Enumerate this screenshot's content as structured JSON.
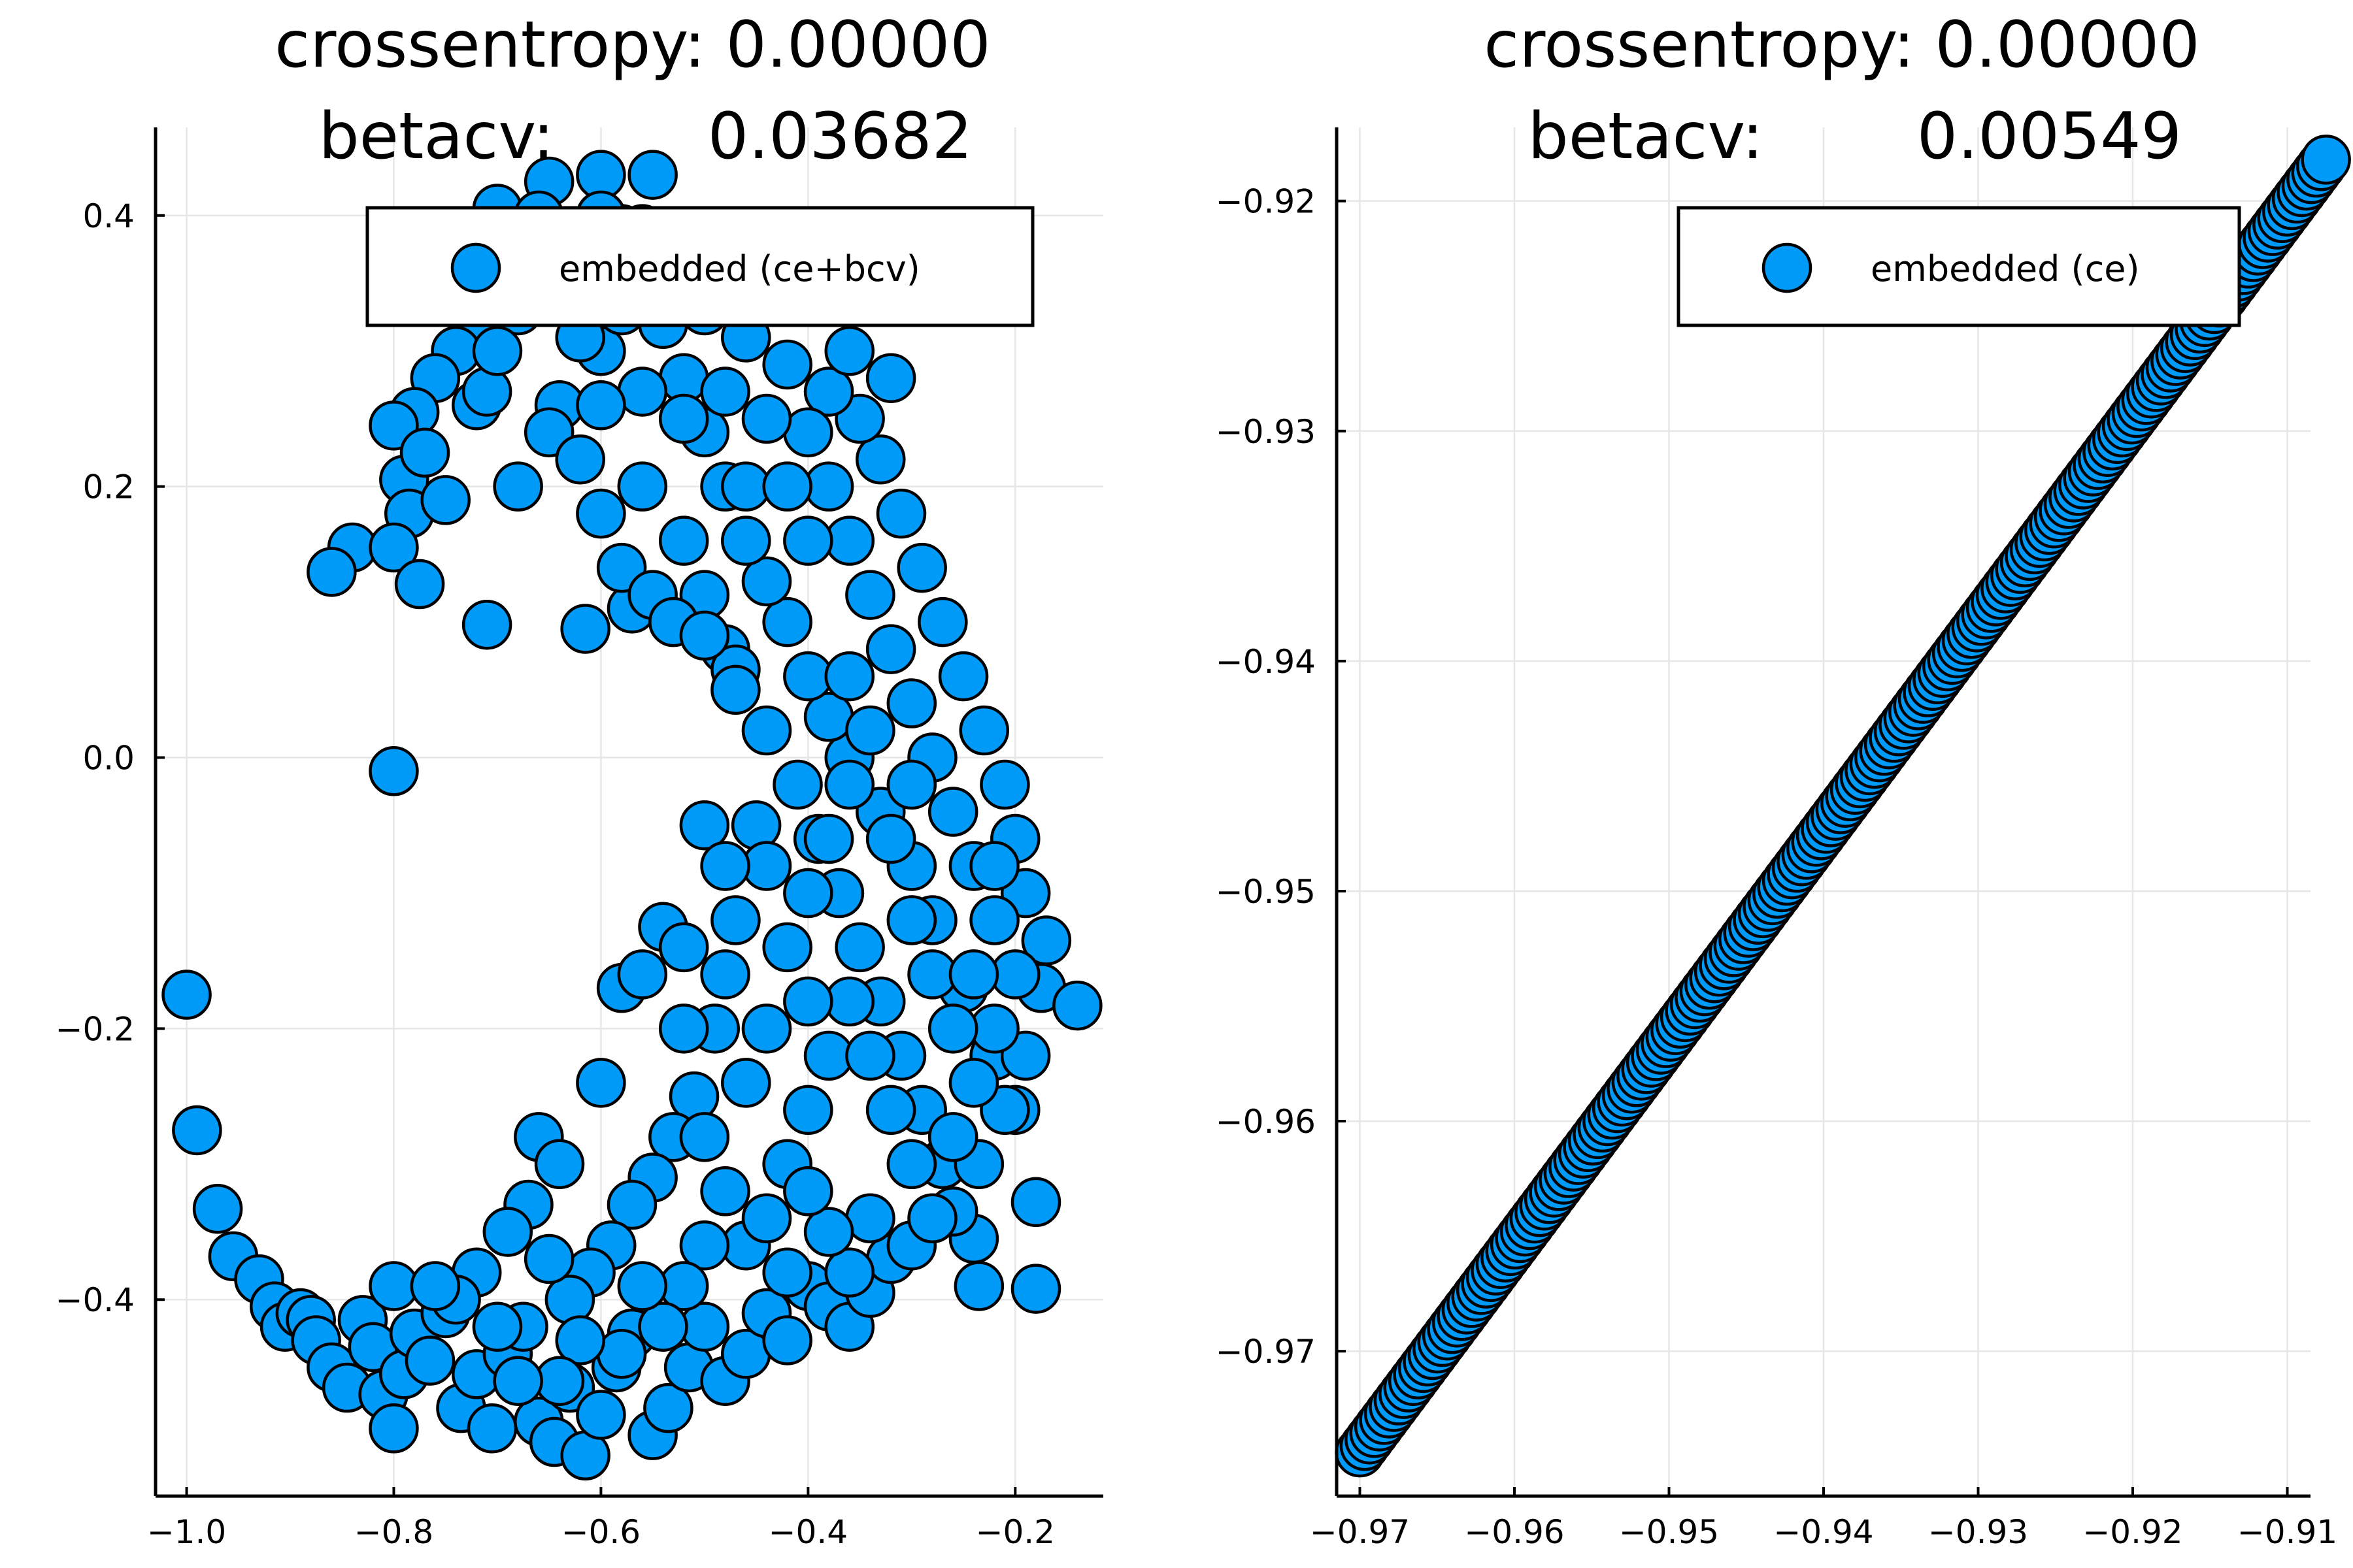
{
  "chart_data": [
    {
      "type": "scatter",
      "title_line1": "crossentropy: 0.00000",
      "title_line2_label": "betacv:",
      "title_line2_value": "0.03682",
      "legend": "embedded (ce+bcv)",
      "legend_position": "top-right",
      "grid": true,
      "marker_color": "#009af9",
      "xlim": [
        -1.03,
        -0.115
      ],
      "ylim": [
        -0.545,
        0.465
      ],
      "xticks": [
        -1.0,
        -0.8,
        -0.6,
        -0.4,
        -0.2
      ],
      "xtick_labels": [
        "−1.0",
        "−0.8",
        "−0.6",
        "−0.4",
        "−0.2"
      ],
      "yticks": [
        -0.4,
        -0.2,
        0.0,
        0.2,
        0.4
      ],
      "ytick_labels": [
        "−0.4",
        "−0.2",
        "0.0",
        "0.2",
        "0.4"
      ],
      "points": [
        [
          -1.0,
          -0.175
        ],
        [
          -0.99,
          -0.275
        ],
        [
          -0.97,
          -0.333
        ],
        [
          -0.955,
          -0.368
        ],
        [
          -0.93,
          -0.385
        ],
        [
          -0.915,
          -0.405
        ],
        [
          -0.905,
          -0.42
        ],
        [
          -0.89,
          -0.41
        ],
        [
          -0.88,
          -0.415
        ],
        [
          -0.875,
          -0.43
        ],
        [
          -0.86,
          -0.45
        ],
        [
          -0.845,
          -0.465
        ],
        [
          -0.83,
          -0.415
        ],
        [
          -0.82,
          -0.435
        ],
        [
          -0.81,
          -0.47
        ],
        [
          -0.8,
          -0.495
        ],
        [
          -0.79,
          -0.455
        ],
        [
          -0.8,
          -0.39
        ],
        [
          -0.78,
          -0.425
        ],
        [
          -0.765,
          -0.445
        ],
        [
          -0.75,
          -0.41
        ],
        [
          -0.735,
          -0.48
        ],
        [
          -0.72,
          -0.455
        ],
        [
          -0.705,
          -0.495
        ],
        [
          -0.69,
          -0.44
        ],
        [
          -0.675,
          -0.42
        ],
        [
          -0.66,
          -0.49
        ],
        [
          -0.645,
          -0.505
        ],
        [
          -0.63,
          -0.465
        ],
        [
          -0.615,
          -0.515
        ],
        [
          -0.6,
          -0.485
        ],
        [
          -0.585,
          -0.45
        ],
        [
          -0.57,
          -0.425
        ],
        [
          -0.55,
          -0.5
        ],
        [
          -0.535,
          -0.48
        ],
        [
          -0.515,
          -0.45
        ],
        [
          -0.5,
          -0.42
        ],
        [
          -0.48,
          -0.46
        ],
        [
          -0.46,
          -0.44
        ],
        [
          -0.44,
          -0.41
        ],
        [
          -0.42,
          -0.43
        ],
        [
          -0.4,
          -0.39
        ],
        [
          -0.38,
          -0.405
        ],
        [
          -0.36,
          -0.42
        ],
        [
          -0.34,
          -0.395
        ],
        [
          -0.32,
          -0.37
        ],
        [
          -0.3,
          -0.36
        ],
        [
          -0.24,
          -0.355
        ],
        [
          -0.235,
          -0.39
        ],
        [
          -0.18,
          -0.392
        ],
        [
          -0.18,
          -0.328
        ],
        [
          -0.2,
          -0.26
        ],
        [
          -0.22,
          -0.22
        ],
        [
          -0.25,
          -0.17
        ],
        [
          -0.28,
          -0.12
        ],
        [
          -0.3,
          -0.08
        ],
        [
          -0.33,
          -0.04
        ],
        [
          -0.36,
          0.0
        ],
        [
          -0.38,
          0.03
        ],
        [
          -0.4,
          0.06
        ],
        [
          -0.42,
          0.1
        ],
        [
          -0.44,
          0.13
        ],
        [
          -0.46,
          0.16
        ],
        [
          -0.48,
          0.2
        ],
        [
          -0.5,
          0.24
        ],
        [
          -0.52,
          0.28
        ],
        [
          -0.54,
          0.32
        ],
        [
          -0.56,
          0.36
        ],
        [
          -0.58,
          0.39
        ],
        [
          -0.55,
          0.43
        ],
        [
          -0.6,
          0.43
        ],
        [
          -0.65,
          0.425
        ],
        [
          -0.7,
          0.405
        ],
        [
          -0.66,
          0.4
        ],
        [
          -0.62,
          0.375
        ],
        [
          -0.72,
          0.32
        ],
        [
          -0.74,
          0.3
        ],
        [
          -0.76,
          0.28
        ],
        [
          -0.78,
          0.255
        ],
        [
          -0.8,
          0.245
        ],
        [
          -0.79,
          0.205
        ],
        [
          -0.785,
          0.18
        ],
        [
          -0.77,
          0.225
        ],
        [
          -0.75,
          0.19
        ],
        [
          -0.72,
          0.26
        ],
        [
          -0.71,
          0.27
        ],
        [
          -0.84,
          0.155
        ],
        [
          -0.86,
          0.137
        ],
        [
          -0.8,
          0.155
        ],
        [
          -0.775,
          0.128
        ],
        [
          -0.71,
          0.098
        ],
        [
          -0.615,
          0.095
        ],
        [
          -0.57,
          0.11
        ],
        [
          -0.8,
          -0.01
        ],
        [
          -0.68,
          0.2
        ],
        [
          -0.64,
          0.26
        ],
        [
          -0.6,
          0.3
        ],
        [
          -0.56,
          0.2
        ],
        [
          -0.52,
          0.16
        ],
        [
          -0.5,
          0.12
        ],
        [
          -0.48,
          0.08
        ],
        [
          -0.47,
          0.065
        ],
        [
          -0.44,
          0.02
        ],
        [
          -0.41,
          -0.02
        ],
        [
          -0.39,
          -0.06
        ],
        [
          -0.37,
          -0.1
        ],
        [
          -0.35,
          -0.14
        ],
        [
          -0.33,
          -0.18
        ],
        [
          -0.31,
          -0.22
        ],
        [
          -0.29,
          -0.26
        ],
        [
          -0.27,
          -0.3
        ],
        [
          -0.26,
          -0.335
        ],
        [
          -0.235,
          -0.3
        ],
        [
          -0.21,
          -0.26
        ],
        [
          -0.19,
          -0.22
        ],
        [
          -0.175,
          -0.17
        ],
        [
          -0.14,
          -0.183
        ],
        [
          -0.17,
          -0.135
        ],
        [
          -0.19,
          -0.1
        ],
        [
          -0.2,
          -0.06
        ],
        [
          -0.21,
          -0.02
        ],
        [
          -0.23,
          0.02
        ],
        [
          -0.25,
          0.06
        ],
        [
          -0.27,
          0.1
        ],
        [
          -0.29,
          0.14
        ],
        [
          -0.31,
          0.18
        ],
        [
          -0.33,
          0.22
        ],
        [
          -0.35,
          0.25
        ],
        [
          -0.38,
          0.27
        ],
        [
          -0.42,
          0.29
        ],
        [
          -0.46,
          0.31
        ],
        [
          -0.5,
          0.33
        ],
        [
          -0.54,
          0.35
        ],
        [
          -0.58,
          0.33
        ],
        [
          -0.62,
          0.31
        ],
        [
          -0.65,
          0.24
        ],
        [
          -0.62,
          0.22
        ],
        [
          -0.6,
          0.18
        ],
        [
          -0.58,
          0.14
        ],
        [
          -0.55,
          0.12
        ],
        [
          -0.53,
          0.1
        ],
        [
          -0.5,
          0.09
        ],
        [
          -0.47,
          0.05
        ],
        [
          -0.45,
          -0.05
        ],
        [
          -0.47,
          -0.12
        ],
        [
          -0.49,
          -0.2
        ],
        [
          -0.51,
          -0.25
        ],
        [
          -0.53,
          -0.28
        ],
        [
          -0.55,
          -0.31
        ],
        [
          -0.57,
          -0.33
        ],
        [
          -0.59,
          -0.36
        ],
        [
          -0.61,
          -0.38
        ],
        [
          -0.63,
          -0.4
        ],
        [
          -0.65,
          -0.37
        ],
        [
          -0.67,
          -0.33
        ],
        [
          -0.69,
          -0.35
        ],
        [
          -0.66,
          -0.28
        ],
        [
          -0.64,
          -0.3
        ],
        [
          -0.6,
          -0.24
        ],
        [
          -0.58,
          -0.17
        ],
        [
          -0.56,
          -0.16
        ],
        [
          -0.54,
          -0.125
        ],
        [
          -0.52,
          -0.2
        ],
        [
          -0.5,
          -0.28
        ],
        [
          -0.48,
          -0.32
        ],
        [
          -0.46,
          -0.36
        ],
        [
          -0.44,
          -0.34
        ],
        [
          -0.42,
          -0.3
        ],
        [
          -0.4,
          -0.26
        ],
        [
          -0.38,
          -0.22
        ],
        [
          -0.36,
          -0.18
        ],
        [
          -0.34,
          -0.22
        ],
        [
          -0.32,
          -0.26
        ],
        [
          -0.3,
          -0.3
        ],
        [
          -0.28,
          -0.34
        ],
        [
          -0.26,
          -0.28
        ],
        [
          -0.24,
          -0.24
        ],
        [
          -0.22,
          -0.2
        ],
        [
          -0.2,
          -0.16
        ],
        [
          -0.22,
          -0.12
        ],
        [
          -0.24,
          -0.08
        ],
        [
          -0.26,
          -0.04
        ],
        [
          -0.28,
          0.0
        ],
        [
          -0.3,
          0.04
        ],
        [
          -0.32,
          0.08
        ],
        [
          -0.34,
          0.12
        ],
        [
          -0.36,
          0.16
        ],
        [
          -0.38,
          0.2
        ],
        [
          -0.4,
          0.24
        ],
        [
          -0.44,
          0.25
        ],
        [
          -0.48,
          0.27
        ],
        [
          -0.52,
          0.25
        ],
        [
          -0.56,
          0.27
        ],
        [
          -0.6,
          0.26
        ],
        [
          -0.44,
          -0.08
        ],
        [
          -0.42,
          -0.14
        ],
        [
          -0.4,
          -0.18
        ],
        [
          -0.44,
          -0.2
        ],
        [
          -0.46,
          -0.24
        ],
        [
          -0.48,
          -0.16
        ],
        [
          -0.4,
          -0.1
        ],
        [
          -0.38,
          -0.06
        ],
        [
          -0.36,
          -0.02
        ],
        [
          -0.34,
          0.02
        ],
        [
          -0.32,
          -0.06
        ],
        [
          -0.3,
          -0.12
        ],
        [
          -0.28,
          -0.16
        ],
        [
          -0.26,
          -0.2
        ],
        [
          -0.24,
          -0.16
        ],
        [
          -0.22,
          -0.08
        ],
        [
          -0.34,
          -0.34
        ],
        [
          -0.36,
          -0.38
        ],
        [
          -0.38,
          -0.35
        ],
        [
          -0.4,
          -0.32
        ],
        [
          -0.42,
          -0.38
        ],
        [
          -0.5,
          -0.36
        ],
        [
          -0.52,
          -0.39
        ],
        [
          -0.54,
          -0.42
        ],
        [
          -0.56,
          -0.39
        ],
        [
          -0.58,
          -0.44
        ],
        [
          -0.62,
          -0.43
        ],
        [
          -0.64,
          -0.46
        ],
        [
          -0.68,
          -0.46
        ],
        [
          -0.7,
          -0.42
        ],
        [
          -0.72,
          -0.38
        ],
        [
          -0.74,
          -0.4
        ],
        [
          -0.76,
          -0.39
        ],
        [
          -0.46,
          0.2
        ],
        [
          -0.42,
          0.2
        ],
        [
          -0.4,
          0.16
        ],
        [
          -0.36,
          0.06
        ],
        [
          -0.3,
          -0.02
        ],
        [
          -0.5,
          -0.05
        ],
        [
          -0.48,
          -0.08
        ],
        [
          -0.52,
          -0.14
        ],
        [
          -0.32,
          0.28
        ],
        [
          -0.36,
          0.3
        ],
        [
          -0.44,
          0.34
        ],
        [
          -0.48,
          0.36
        ],
        [
          -0.52,
          0.37
        ],
        [
          -0.56,
          0.39
        ],
        [
          -0.6,
          0.4
        ],
        [
          -0.64,
          0.36
        ],
        [
          -0.68,
          0.33
        ],
        [
          -0.7,
          0.3
        ]
      ]
    },
    {
      "type": "scatter",
      "title_line1": "crossentropy: 0.00000",
      "title_line2_label": "betacv:",
      "title_line2_value": "0.00549",
      "legend": "embedded (ce)",
      "legend_position": "top-right",
      "grid": true,
      "marker_color": "#009af9",
      "xlim": [
        -0.9715,
        -0.9085
      ],
      "ylim": [
        -0.9763,
        -0.9168
      ],
      "xticks": [
        -0.97,
        -0.96,
        -0.95,
        -0.94,
        -0.93,
        -0.92,
        -0.91
      ],
      "xtick_labels": [
        "−0.97",
        "−0.96",
        "−0.95",
        "−0.94",
        "−0.93",
        "−0.92",
        "−0.91"
      ],
      "yticks": [
        -0.97,
        -0.96,
        -0.95,
        -0.94,
        -0.93,
        -0.92
      ],
      "ytick_labels": [
        "−0.97",
        "−0.96",
        "−0.95",
        "−0.94",
        "−0.93",
        "−0.92"
      ],
      "line_start": [
        -0.97,
        -0.9744
      ],
      "line_end": [
        -0.9075,
        -0.9182
      ],
      "num_points": 200
    }
  ]
}
